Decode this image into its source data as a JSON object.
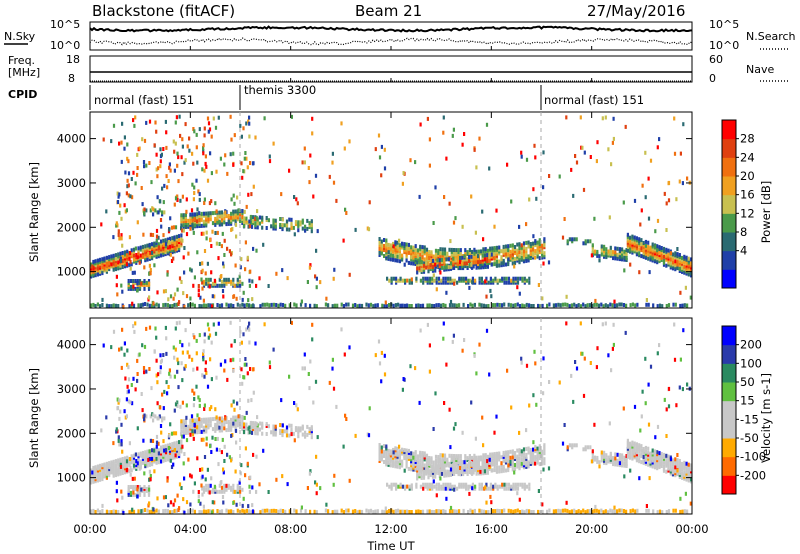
{
  "header": {
    "station": "Blackstone (fitACF)",
    "beam": "Beam 21",
    "date": "27/May/2016"
  },
  "noise_panel": {
    "left_label": "N.Sky",
    "right_label": "N.Search",
    "left_ticks": [
      "10^5",
      "10^0"
    ],
    "right_ticks": [
      "10^5",
      "10^0"
    ]
  },
  "freq_panel": {
    "left_label_1": "Freq.",
    "left_label_2": "[MHz]",
    "right_label": "Nave",
    "left_ticks": [
      "18",
      "8"
    ],
    "right_ticks": [
      "60",
      "0"
    ]
  },
  "cpid_panel": {
    "label": "CPID",
    "segments": [
      {
        "start_hour": 0,
        "text": "normal (fast) 151"
      },
      {
        "start_hour": 6,
        "text": "themis 3300"
      },
      {
        "start_hour": 18,
        "text": "normal (fast) 151"
      }
    ]
  },
  "chart_data": [
    {
      "type": "heatmap",
      "name": "power",
      "ylabel": "Slant Range [km]",
      "ylim": [
        180,
        4600
      ],
      "yticks": [
        "1000",
        "2000",
        "3000",
        "4000"
      ],
      "colorbar_label": "Power [dB]",
      "colorbar_ticks": [
        "28",
        "24",
        "20",
        "16",
        "12",
        "8",
        "4"
      ],
      "colors": [
        "#0000ff",
        "#1f3fa8",
        "#2a6a72",
        "#4a9a4a",
        "#c8c050",
        "#f0a020",
        "#f07010",
        "#e04010",
        "#ff0000"
      ],
      "bands": [
        {
          "x": [
            0.0,
            3.5
          ],
          "y": [
            1000,
            1700
          ],
          "desc": "echo band rising"
        },
        {
          "x": [
            2.5,
            6.2
          ],
          "y": [
            1900,
            2500
          ],
          "desc": "upper band"
        },
        {
          "x": [
            6.0,
            9.5
          ],
          "y": [
            1900,
            2400
          ],
          "desc": "upper band"
        },
        {
          "x": [
            11.5,
            18.0
          ],
          "y": [
            700,
            1800
          ],
          "desc": "afternoon echoes"
        },
        {
          "x": [
            20.0,
            24.0
          ],
          "y": [
            1000,
            1800
          ],
          "desc": "evening echoes"
        },
        {
          "x": [
            1.5,
            2.3
          ],
          "y": [
            600,
            800
          ],
          "desc": "near range patch"
        },
        {
          "x": [
            4.5,
            5.8
          ],
          "y": [
            700,
            900
          ],
          "desc": "near range patch"
        }
      ]
    },
    {
      "type": "heatmap",
      "name": "velocity",
      "ylabel": "Slant Range [km]",
      "ylim": [
        180,
        4600
      ],
      "yticks": [
        "1000",
        "2000",
        "3000",
        "4000"
      ],
      "colorbar_label": "Velocity [m s-1]",
      "colorbar_ticks": [
        "200",
        "100",
        "50",
        "15",
        "-15",
        "-50",
        "-100",
        "-200"
      ],
      "colors": [
        "#ff0000",
        "#ff6a00",
        "#ffaa00",
        "#c8c8c8",
        "#c8c8c8",
        "#60c040",
        "#2a8a60",
        "#2a3aaa",
        "#0000ff"
      ],
      "xlabel": "Time UT",
      "xticks": [
        "00:00",
        "04:00",
        "08:00",
        "12:00",
        "16:00",
        "20:00",
        "00:00"
      ],
      "xlim": [
        0,
        24
      ]
    }
  ]
}
